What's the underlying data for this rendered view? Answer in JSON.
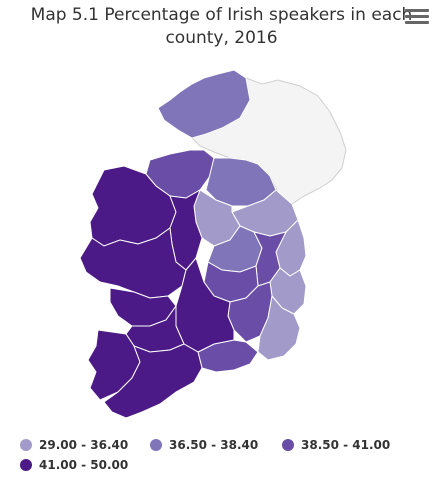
{
  "title": {
    "line1": "Map 5.1 Percentage of Irish speakers in each",
    "line2": "county, 2016"
  },
  "menu_icon": "hamburger-menu-icon",
  "colors": {
    "band1": "#a29bca",
    "band2": "#7f75b8",
    "band3": "#6a4da6",
    "band4": "#4b1a86",
    "no_data": "#f4f4f4",
    "border": "#ffffff"
  },
  "legend": [
    {
      "label": "29.00 - 36.40",
      "color": "#a29bca"
    },
    {
      "label": "36.50 - 38.40",
      "color": "#7f75b8"
    },
    {
      "label": "38.50 - 41.00",
      "color": "#6a4da6"
    },
    {
      "label": "41.00 - 50.00",
      "color": "#4b1a86"
    }
  ]
}
